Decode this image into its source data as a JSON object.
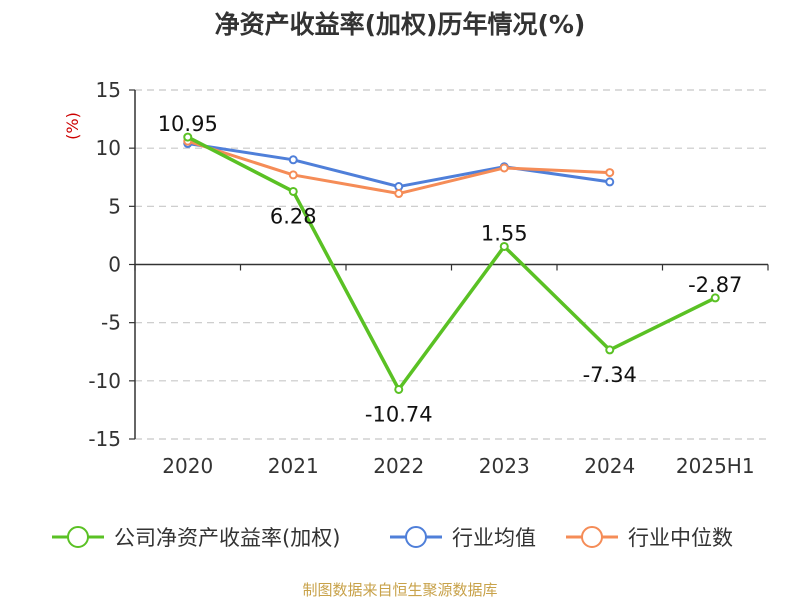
{
  "chart_data": {
    "type": "line",
    "title": "净资产收益率(加权)历年情况(%)",
    "y_unit": "(%)",
    "categories": [
      "2020",
      "2021",
      "2022",
      "2023",
      "2024",
      "2025H1"
    ],
    "ylim": [
      -15,
      15
    ],
    "yticks": [
      "15",
      "10",
      "5",
      "0",
      "-5",
      "-10",
      "-15"
    ],
    "grid": true,
    "legend_position": "bottom",
    "series": [
      {
        "name": "公司净资产收益率(加权)",
        "color": "#5ac124",
        "values": [
          10.95,
          6.28,
          -10.74,
          1.55,
          -7.34,
          -2.87
        ],
        "labels": [
          "10.95",
          "6.28",
          "-10.74",
          "1.55",
          "-7.34",
          "-2.87"
        ]
      },
      {
        "name": "行业均值",
        "color": "#4f7fd9",
        "values": [
          10.4,
          9.0,
          6.7,
          8.4,
          7.1,
          null
        ]
      },
      {
        "name": "行业中位数",
        "color": "#f58c57",
        "values": [
          10.6,
          7.7,
          6.1,
          8.3,
          7.9,
          null
        ]
      }
    ],
    "source": "制图数据来自恒生聚源数据库"
  }
}
